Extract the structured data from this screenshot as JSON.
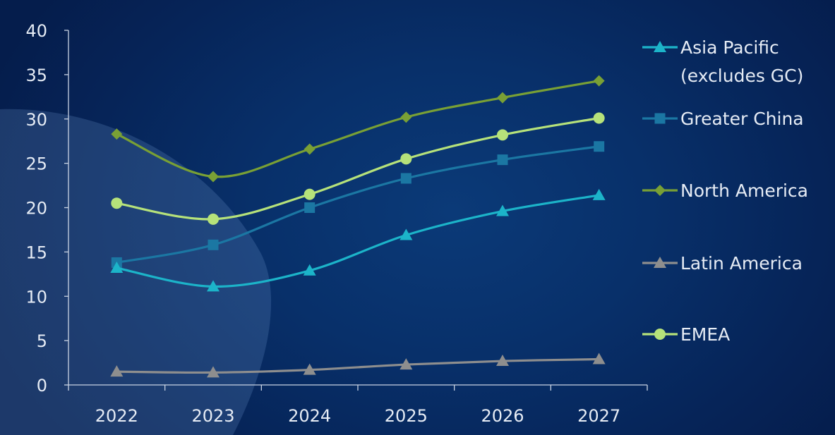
{
  "chart_data": {
    "type": "line",
    "title": "",
    "xlabel": "",
    "ylabel": "",
    "categories": [
      "2022",
      "2023",
      "2024",
      "2025",
      "2026",
      "2027"
    ],
    "ylim": [
      0,
      40
    ],
    "yticks": [
      "0",
      "5",
      "10",
      "15",
      "20",
      "25",
      "30",
      "35",
      "40"
    ],
    "grid": false,
    "legend_position": "right",
    "series": [
      {
        "name": "Asia Pacific (excludes GC)",
        "name_lines": [
          "Asia Pacific",
          "(excludes GC)"
        ],
        "marker": "triangle",
        "color": "#1cb4c9",
        "values": [
          13.2,
          11.1,
          12.9,
          16.9,
          19.6,
          21.4
        ]
      },
      {
        "name": "Greater China",
        "name_lines": [
          "Greater China"
        ],
        "marker": "square",
        "color": "#1b77a3",
        "values": [
          13.8,
          15.8,
          20.0,
          23.3,
          25.4,
          26.9
        ]
      },
      {
        "name": "North America",
        "name_lines": [
          "North America"
        ],
        "marker": "diamond",
        "color": "#79a035",
        "values": [
          28.3,
          23.5,
          26.6,
          30.2,
          32.4,
          34.3
        ]
      },
      {
        "name": "Latin America",
        "name_lines": [
          "Latin America"
        ],
        "marker": "triangle",
        "color": "#8e8e8e",
        "values": [
          1.5,
          1.4,
          1.7,
          2.3,
          2.7,
          2.9
        ]
      },
      {
        "name": "EMEA",
        "name_lines": [
          "EMEA"
        ],
        "marker": "circle",
        "color": "#b6e27a",
        "values": [
          20.5,
          18.7,
          21.5,
          25.5,
          28.2,
          30.1
        ]
      }
    ]
  }
}
